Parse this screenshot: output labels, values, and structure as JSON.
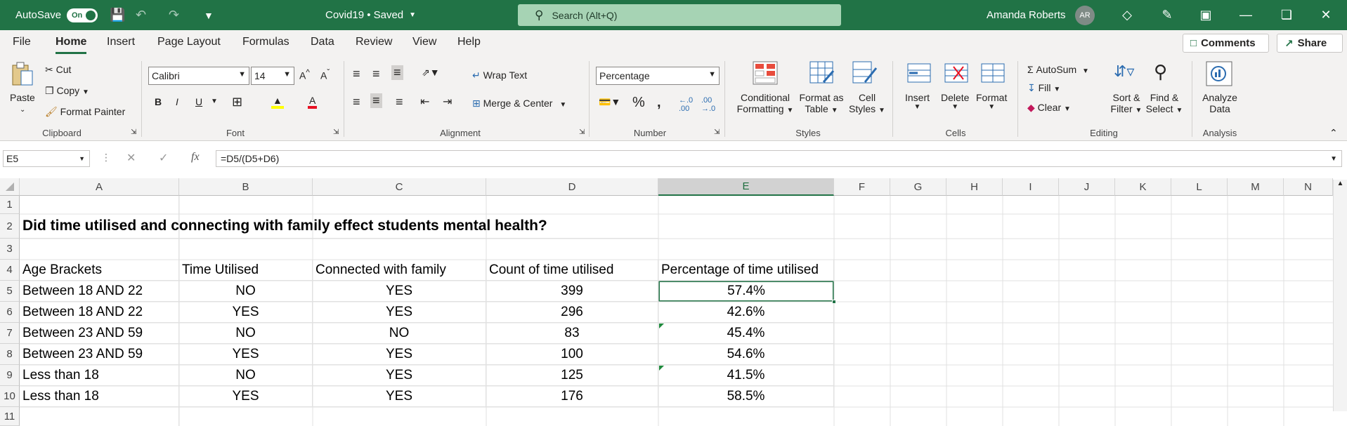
{
  "titlebar": {
    "autosave_label": "AutoSave",
    "autosave_state": "On",
    "doc_title": "Covid19 • Saved",
    "search_placeholder": "Search (Alt+Q)",
    "user_name": "Amanda Roberts",
    "user_initials": "AR"
  },
  "menu": {
    "tabs": [
      "File",
      "Home",
      "Insert",
      "Page Layout",
      "Formulas",
      "Data",
      "Review",
      "View",
      "Help"
    ],
    "active_tab": "Home",
    "comments_label": "Comments",
    "share_label": "Share"
  },
  "ribbon": {
    "clipboard": {
      "paste": "Paste",
      "cut": "Cut",
      "copy": "Copy",
      "format_painter": "Format Painter",
      "group": "Clipboard"
    },
    "font": {
      "name": "Calibri",
      "size": "14",
      "group": "Font"
    },
    "alignment": {
      "wrap_text": "Wrap Text",
      "merge_center": "Merge & Center",
      "group": "Alignment"
    },
    "number": {
      "format": "Percentage",
      "group": "Number"
    },
    "styles": {
      "conditional_1": "Conditional",
      "conditional_2": "Formatting",
      "format_table_1": "Format as",
      "format_table_2": "Table",
      "cell_styles_1": "Cell",
      "cell_styles_2": "Styles",
      "group": "Styles"
    },
    "cells": {
      "insert": "Insert",
      "delete": "Delete",
      "format": "Format",
      "group": "Cells"
    },
    "editing": {
      "autosum": "AutoSum",
      "fill": "Fill",
      "clear": "Clear",
      "sort_1": "Sort &",
      "sort_2": "Filter",
      "find_1": "Find &",
      "find_2": "Select",
      "group": "Editing"
    },
    "analysis": {
      "analyze_1": "Analyze",
      "analyze_2": "Data",
      "group": "Analysis"
    }
  },
  "formula_bar": {
    "name_box": "E5",
    "formula": "=D5/(D5+D6)"
  },
  "sheet": {
    "columns": [
      "A",
      "B",
      "C",
      "D",
      "E",
      "F",
      "G",
      "H",
      "I",
      "J",
      "K",
      "L",
      "M",
      "N"
    ],
    "selected_column": "E",
    "row_numbers": [
      "1",
      "2",
      "3",
      "4",
      "5",
      "6",
      "7",
      "8",
      "9",
      "10",
      "11"
    ],
    "title": "Did time utilised and connecting with family effect students mental health?",
    "headers": [
      "Age Brackets",
      "Time Utilised",
      "Connected with family",
      "Count of time utilised",
      "Percentage of time utilised"
    ],
    "rows": [
      [
        "Between 18 AND 22",
        "NO",
        "YES",
        "399",
        "57.4%"
      ],
      [
        "Between 18 AND 22",
        "YES",
        "YES",
        "296",
        "42.6%"
      ],
      [
        "Between 23 AND 59",
        "NO",
        "NO",
        "83",
        "45.4%"
      ],
      [
        "Between 23 AND 59",
        "YES",
        "YES",
        "100",
        "54.6%"
      ],
      [
        "Less than 18",
        "NO",
        "YES",
        "125",
        "41.5%"
      ],
      [
        "Less than 18",
        "YES",
        "YES",
        "176",
        "58.5%"
      ]
    ],
    "active_cell": "E5"
  }
}
